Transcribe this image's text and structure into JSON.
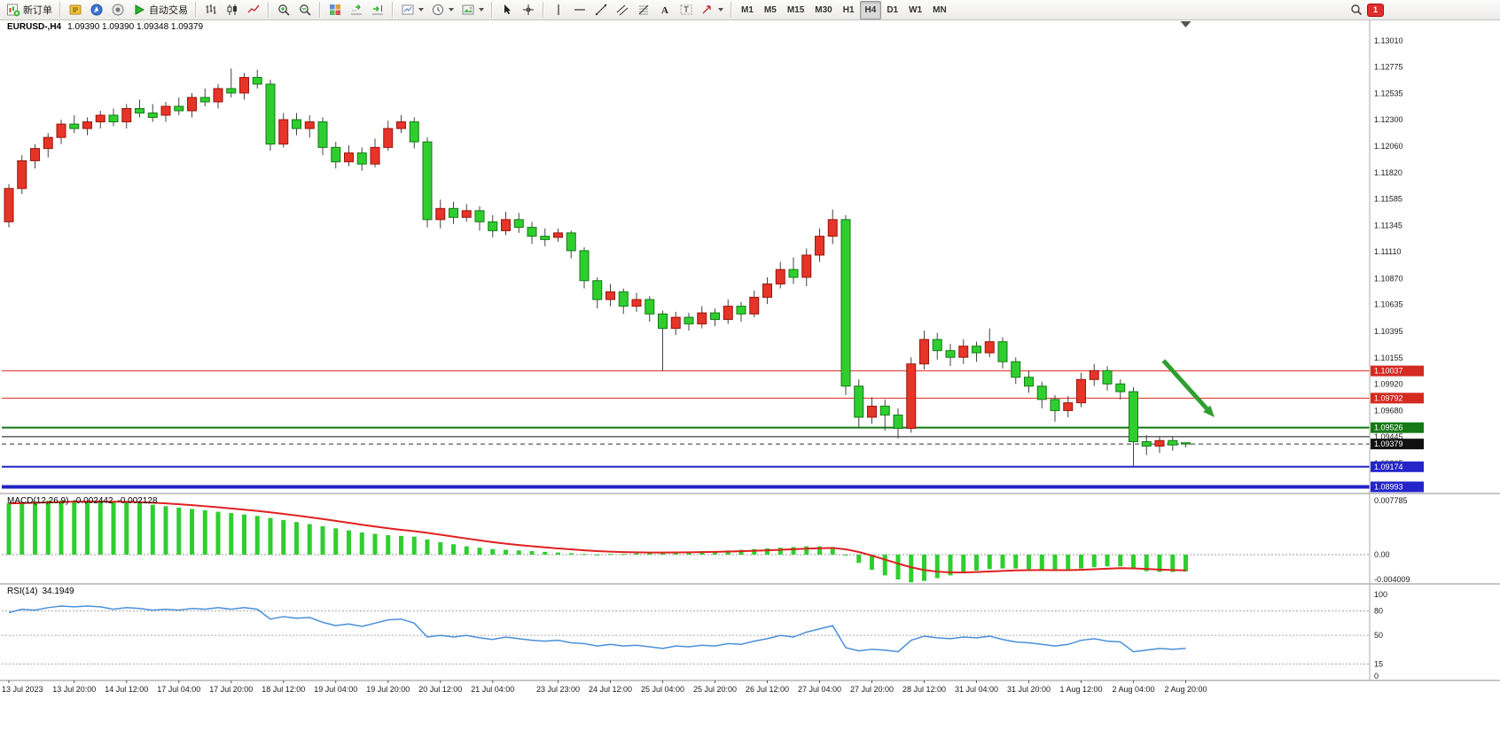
{
  "toolbar": {
    "buttons": [
      {
        "name": "new-order-button",
        "icon": "new-order-icon",
        "label": "新订单"
      },
      {
        "sep": true
      },
      {
        "name": "metaeditor-button",
        "icon": "metaeditor-icon"
      },
      {
        "name": "navigator-button",
        "icon": "navigator-icon"
      },
      {
        "name": "terminal-button",
        "icon": "terminal-icon"
      },
      {
        "name": "autotrading-button",
        "icon": "autotrading-icon",
        "label": "自动交易"
      },
      {
        "sep": true
      },
      {
        "name": "bar-chart-button",
        "icon": "bar-chart-icon"
      },
      {
        "name": "candlestick-chart-button",
        "icon": "candlestick-icon"
      },
      {
        "name": "line-chart-button",
        "icon": "line-chart-icon"
      },
      {
        "sep": true
      },
      {
        "name": "zoom-in-button",
        "icon": "zoom-in-icon"
      },
      {
        "name": "zoom-out-button",
        "icon": "zoom-out-icon"
      },
      {
        "sep": true
      },
      {
        "name": "tile-windows-button",
        "icon": "tile-windows-icon"
      },
      {
        "name": "auto-scroll-button",
        "icon": "auto-scroll-icon"
      },
      {
        "name": "chart-shift-button",
        "icon": "chart-shift-icon"
      },
      {
        "sep": true
      },
      {
        "name": "new-chart-button",
        "icon": "new-chart-icon",
        "caret": true
      },
      {
        "name": "periods-button",
        "icon": "clock-icon",
        "caret": true
      },
      {
        "name": "templates-button",
        "icon": "template-icon",
        "caret": true
      },
      {
        "sep": true
      },
      {
        "name": "cursor-button",
        "icon": "cursor-icon"
      },
      {
        "name": "crosshair-button",
        "icon": "crosshair-icon"
      },
      {
        "sep": true
      },
      {
        "name": "vertical-line-button",
        "icon": "vertical-line-icon"
      },
      {
        "name": "horizontal-line-button",
        "icon": "horizontal-line-icon"
      },
      {
        "name": "trendline-button",
        "icon": "trendline-icon"
      },
      {
        "name": "channel-button",
        "icon": "channel-icon"
      },
      {
        "name": "fibonacci-button",
        "icon": "fibonacci-icon"
      },
      {
        "name": "text-button",
        "icon": "text-icon"
      },
      {
        "name": "text-label-button",
        "icon": "text-label-icon"
      },
      {
        "name": "arrows-button",
        "icon": "arrow-icon",
        "caret": true
      },
      {
        "sep": true
      }
    ],
    "timeframes": [
      "M1",
      "M5",
      "M15",
      "M30",
      "H1",
      "H4",
      "D1",
      "W1",
      "MN"
    ],
    "active_timeframe": "H4",
    "right_buttons": [
      {
        "name": "search-button",
        "icon": "search-icon"
      }
    ],
    "notification_badge": "1"
  },
  "chart": {
    "symbol_period": "EURUSD-,H4",
    "ohlc": "1.09390 1.09390 1.09348 1.09379"
  },
  "indicators": {
    "macd": {
      "label": "MACD(12,26,9)",
      "value": "-0.002442",
      "signal_value": "-0.002128",
      "axis_labels": [
        "0.007785",
        "0.00",
        "-0.004009"
      ]
    },
    "rsi": {
      "label": "RSI(14)",
      "value": "34.1949",
      "axis_labels": [
        "100",
        "80",
        "50",
        "15",
        "0"
      ],
      "levels": [
        80,
        50,
        15
      ]
    }
  },
  "price_axis": {
    "ticks": [
      "1.13010",
      "1.12775",
      "1.12535",
      "1.12300",
      "1.12060",
      "1.11820",
      "1.11585",
      "1.11345",
      "1.11110",
      "1.10870",
      "1.10635",
      "1.10395",
      "1.10155",
      "1.09920",
      "1.09680",
      "1.09445",
      "1.09205"
    ],
    "markers": [
      {
        "value": "1.10037",
        "color": "#d42a20"
      },
      {
        "value": "1.09792",
        "color": "#d42a20"
      },
      {
        "value": "1.09526",
        "color": "#157a15"
      },
      {
        "value": "1.09379",
        "color": "#111111"
      },
      {
        "value": "1.09174",
        "color": "#2424c8"
      },
      {
        "value": "1.08993",
        "color": "#2424c8"
      }
    ]
  },
  "chart_data": {
    "type": "candlestick",
    "symbol": "EURUSD-",
    "timeframe": "H4",
    "candles": [
      [
        1.1138,
        1.1172,
        1.1133,
        1.1168
      ],
      [
        1.1168,
        1.1198,
        1.1163,
        1.1193
      ],
      [
        1.1193,
        1.1208,
        1.1186,
        1.1204
      ],
      [
        1.1204,
        1.1218,
        1.1196,
        1.1214
      ],
      [
        1.1214,
        1.123,
        1.1208,
        1.1226
      ],
      [
        1.1226,
        1.1234,
        1.1218,
        1.1222
      ],
      [
        1.1222,
        1.1232,
        1.1216,
        1.1228
      ],
      [
        1.1228,
        1.1238,
        1.1222,
        1.1234
      ],
      [
        1.1234,
        1.124,
        1.1224,
        1.1228
      ],
      [
        1.1228,
        1.1244,
        1.1222,
        1.124
      ],
      [
        1.124,
        1.1248,
        1.1232,
        1.1236
      ],
      [
        1.1236,
        1.1244,
        1.1228,
        1.1232
      ],
      [
        1.1234,
        1.1246,
        1.1228,
        1.1242
      ],
      [
        1.1242,
        1.125,
        1.1234,
        1.1238
      ],
      [
        1.1238,
        1.1254,
        1.1232,
        1.125
      ],
      [
        1.125,
        1.1258,
        1.1242,
        1.1246
      ],
      [
        1.1246,
        1.1262,
        1.124,
        1.1258
      ],
      [
        1.1258,
        1.1276,
        1.125,
        1.1254
      ],
      [
        1.1254,
        1.1272,
        1.1248,
        1.1268
      ],
      [
        1.1268,
        1.1275,
        1.1258,
        1.1262
      ],
      [
        1.1262,
        1.1266,
        1.1202,
        1.1208
      ],
      [
        1.1208,
        1.1236,
        1.1205,
        1.123
      ],
      [
        1.123,
        1.1236,
        1.1216,
        1.1222
      ],
      [
        1.1222,
        1.1234,
        1.1214,
        1.1228
      ],
      [
        1.1228,
        1.1232,
        1.1198,
        1.1205
      ],
      [
        1.1205,
        1.121,
        1.1186,
        1.1192
      ],
      [
        1.1192,
        1.1207,
        1.1188,
        1.12
      ],
      [
        1.12,
        1.1205,
        1.1184,
        1.119
      ],
      [
        1.119,
        1.1213,
        1.1187,
        1.1205
      ],
      [
        1.1205,
        1.1229,
        1.1202,
        1.1222
      ],
      [
        1.1222,
        1.1234,
        1.1218,
        1.1228
      ],
      [
        1.1228,
        1.1232,
        1.1204,
        1.121
      ],
      [
        1.121,
        1.1214,
        1.1133,
        1.114
      ],
      [
        1.114,
        1.1158,
        1.1132,
        1.115
      ],
      [
        1.115,
        1.1156,
        1.1136,
        1.1142
      ],
      [
        1.1142,
        1.1154,
        1.1138,
        1.1148
      ],
      [
        1.1148,
        1.1152,
        1.113,
        1.1138
      ],
      [
        1.1138,
        1.1144,
        1.1124,
        1.113
      ],
      [
        1.113,
        1.1147,
        1.1126,
        1.114
      ],
      [
        1.114,
        1.1146,
        1.1128,
        1.1133
      ],
      [
        1.1133,
        1.1138,
        1.1118,
        1.1125
      ],
      [
        1.1125,
        1.1132,
        1.1116,
        1.1122
      ],
      [
        1.1124,
        1.1132,
        1.112,
        1.1128
      ],
      [
        1.1128,
        1.113,
        1.1105,
        1.1112
      ],
      [
        1.1112,
        1.1115,
        1.1078,
        1.1085
      ],
      [
        1.1085,
        1.1088,
        1.106,
        1.1068
      ],
      [
        1.1068,
        1.1082,
        1.1062,
        1.1075
      ],
      [
        1.1075,
        1.1078,
        1.1055,
        1.1062
      ],
      [
        1.1062,
        1.1074,
        1.1057,
        1.1068
      ],
      [
        1.1068,
        1.1071,
        1.1048,
        1.1055
      ],
      [
        1.1055,
        1.1058,
        1.1004,
        1.1042
      ],
      [
        1.1042,
        1.1057,
        1.1036,
        1.1052
      ],
      [
        1.1052,
        1.1056,
        1.104,
        1.1046
      ],
      [
        1.1046,
        1.1062,
        1.1042,
        1.1056
      ],
      [
        1.1056,
        1.106,
        1.1044,
        1.105
      ],
      [
        1.105,
        1.1068,
        1.1046,
        1.1062
      ],
      [
        1.1062,
        1.1066,
        1.1048,
        1.1055
      ],
      [
        1.1055,
        1.1076,
        1.1052,
        1.107
      ],
      [
        1.107,
        1.1088,
        1.1064,
        1.1082
      ],
      [
        1.1082,
        1.1102,
        1.1078,
        1.1095
      ],
      [
        1.1095,
        1.1106,
        1.1082,
        1.1088
      ],
      [
        1.1088,
        1.1114,
        1.108,
        1.1108
      ],
      [
        1.1108,
        1.1132,
        1.1102,
        1.1125
      ],
      [
        1.1125,
        1.1149,
        1.1118,
        1.114
      ],
      [
        1.114,
        1.1144,
        1.0982,
        1.099
      ],
      [
        1.099,
        1.0996,
        1.0952,
        1.0962
      ],
      [
        1.0962,
        1.098,
        1.0956,
        1.0972
      ],
      [
        1.0972,
        1.0978,
        1.095,
        1.0964
      ],
      [
        1.0964,
        1.097,
        1.0943,
        1.0952
      ],
      [
        1.0952,
        1.1016,
        1.0948,
        1.101
      ],
      [
        1.101,
        1.104,
        1.1005,
        1.1032
      ],
      [
        1.1032,
        1.1038,
        1.1014,
        1.1022
      ],
      [
        1.1022,
        1.1028,
        1.1008,
        1.1016
      ],
      [
        1.1016,
        1.1032,
        1.101,
        1.1026
      ],
      [
        1.1026,
        1.103,
        1.1012,
        1.102
      ],
      [
        1.102,
        1.1042,
        1.1016,
        1.103
      ],
      [
        1.103,
        1.1034,
        1.1006,
        1.1012
      ],
      [
        1.1012,
        1.1016,
        1.0992,
        1.0998
      ],
      [
        1.0998,
        1.1004,
        1.0984,
        1.099
      ],
      [
        1.099,
        1.0994,
        1.097,
        1.0978
      ],
      [
        1.0978,
        1.0982,
        1.0958,
        1.0968
      ],
      [
        1.0968,
        1.0981,
        1.0962,
        1.0975
      ],
      [
        1.0975,
        1.1002,
        1.0971,
        1.0996
      ],
      [
        1.0996,
        1.101,
        1.099,
        1.1004
      ],
      [
        1.1004,
        1.1008,
        1.0986,
        1.0992
      ],
      [
        1.0992,
        1.0996,
        1.0978,
        1.0985
      ],
      [
        1.0985,
        1.0989,
        1.0918,
        1.094
      ],
      [
        1.094,
        1.0946,
        1.0928,
        1.0936
      ],
      [
        1.0936,
        1.0945,
        1.093,
        1.0941
      ],
      [
        1.0941,
        1.0944,
        1.0932,
        1.0937
      ],
      [
        1.0939,
        1.0939,
        1.09348,
        1.09379
      ]
    ],
    "time_labels": [
      {
        "i": 0,
        "t": "13 Jul 2023"
      },
      {
        "i": 5,
        "t": "13 Jul 20:00"
      },
      {
        "i": 9,
        "t": "14 Jul 12:00"
      },
      {
        "i": 13,
        "t": "17 Jul 04:00"
      },
      {
        "i": 17,
        "t": "17 Jul 20:00"
      },
      {
        "i": 21,
        "t": "18 Jul 12:00"
      },
      {
        "i": 25,
        "t": "19 Jul 04:00"
      },
      {
        "i": 29,
        "t": "19 Jul 20:00"
      },
      {
        "i": 33,
        "t": "20 Jul 12:00"
      },
      {
        "i": 37,
        "t": "21 Jul 04:00"
      },
      {
        "i": 42,
        "t": "23 Jul 23:00"
      },
      {
        "i": 46,
        "t": "24 Jul 12:00"
      },
      {
        "i": 50,
        "t": "25 Jul 04:00"
      },
      {
        "i": 54,
        "t": "25 Jul 20:00"
      },
      {
        "i": 58,
        "t": "26 Jul 12:00"
      },
      {
        "i": 62,
        "t": "27 Jul 04:00"
      },
      {
        "i": 66,
        "t": "27 Jul 20:00"
      },
      {
        "i": 70,
        "t": "28 Jul 12:00"
      },
      {
        "i": 74,
        "t": "31 Jul 04:00"
      },
      {
        "i": 78,
        "t": "31 Jul 20:00"
      },
      {
        "i": 82,
        "t": "1 Aug 12:00"
      },
      {
        "i": 86,
        "t": "2 Aug 04:00"
      },
      {
        "i": 90,
        "t": "2 Aug 20:00"
      }
    ],
    "horizontal_lines": [
      {
        "price": 1.10037,
        "color": "#e02a20",
        "width": 1,
        "style": "solid"
      },
      {
        "price": 1.09792,
        "color": "#e02a20",
        "width": 1,
        "style": "solid"
      },
      {
        "price": 1.09526,
        "color": "#157a15",
        "width": 2,
        "style": "solid"
      },
      {
        "price": 1.09445,
        "color": "#111111",
        "width": 1,
        "style": "solid"
      },
      {
        "price": 1.09174,
        "color": "#2424c8",
        "width": 2,
        "style": "solid"
      },
      {
        "price": 1.08993,
        "color": "#2424c8",
        "width": 4,
        "style": "solid"
      }
    ],
    "current_price_line": {
      "price": 1.09379,
      "color": "#333333",
      "style": "dash"
    },
    "arrow": {
      "from_index": 88.3,
      "from_price": 1.1013,
      "to_index": 92.2,
      "to_price": 1.0962,
      "color": "#2f9e2f"
    },
    "macd_histogram": [
      0.0074,
      0.0076,
      0.0077,
      0.0078,
      0.0078,
      0.0078,
      0.0077,
      0.0077,
      0.0076,
      0.0075,
      0.0074,
      0.0072,
      0.007,
      0.0068,
      0.0066,
      0.0064,
      0.0062,
      0.006,
      0.0058,
      0.0056,
      0.0053,
      0.005,
      0.0047,
      0.0044,
      0.0041,
      0.0038,
      0.0035,
      0.0032,
      0.003,
      0.0028,
      0.0027,
      0.0026,
      0.0022,
      0.0018,
      0.0015,
      0.0012,
      0.001,
      0.0008,
      0.0007,
      0.0006,
      0.0005,
      0.0004,
      0.0003,
      0.0002,
      0.0001,
      0.0,
      0.0001,
      0.0001,
      0.0002,
      0.0002,
      0.0003,
      0.0004,
      0.0004,
      0.0005,
      0.0005,
      0.0006,
      0.0007,
      0.0008,
      0.0009,
      0.001,
      0.0011,
      0.0012,
      0.0012,
      0.0011,
      0.0,
      -0.0012,
      -0.0022,
      -0.003,
      -0.0036,
      -0.004,
      -0.0038,
      -0.0034,
      -0.003,
      -0.0026,
      -0.0023,
      -0.0021,
      -0.002,
      -0.002,
      -0.0021,
      -0.0022,
      -0.0023,
      -0.0022,
      -0.002,
      -0.0018,
      -0.0017,
      -0.0017,
      -0.0021,
      -0.0024,
      -0.0025,
      -0.0025,
      -0.00244
    ],
    "rsi_values": [
      78,
      82,
      81,
      84,
      86,
      85,
      86,
      85,
      82,
      84,
      83,
      81,
      82,
      81,
      83,
      82,
      84,
      82,
      84,
      82,
      70,
      73,
      71,
      72,
      66,
      62,
      64,
      61,
      65,
      69,
      70,
      65,
      48,
      50,
      48,
      50,
      47,
      45,
      48,
      46,
      44,
      43,
      44,
      41,
      40,
      37,
      39,
      37,
      38,
      36,
      34,
      37,
      36,
      38,
      37,
      40,
      39,
      43,
      46,
      50,
      48,
      54,
      58,
      62,
      35,
      31,
      33,
      32,
      30,
      44,
      49,
      47,
      46,
      48,
      47,
      49,
      45,
      42,
      41,
      39,
      37,
      39,
      44,
      46,
      43,
      42,
      30,
      32,
      34,
      33,
      34.19
    ]
  },
  "colors": {
    "bull": "#e63428",
    "bull_border": "#9c150a",
    "bear": "#2fce2f",
    "bear_border": "#147a14",
    "wick": "#444444",
    "macd_histogram": "#2fce2f",
    "macd_signal": "#e02020",
    "rsi_line": "#4a90d9",
    "background": "#ffffff"
  }
}
